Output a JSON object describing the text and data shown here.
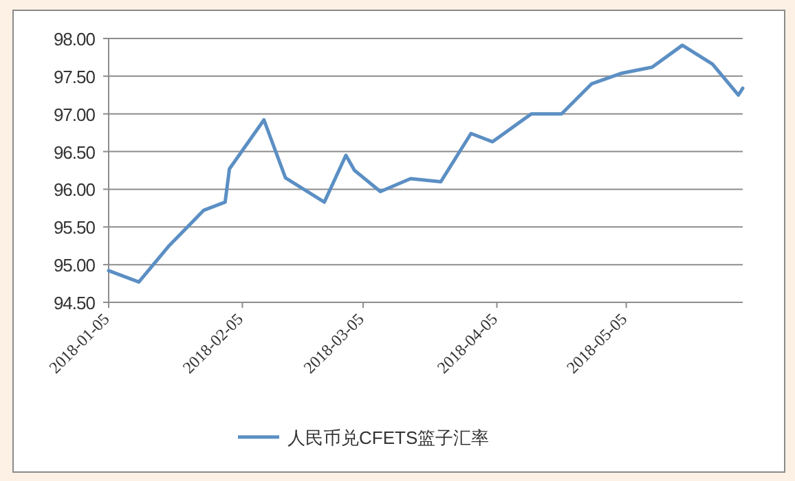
{
  "chart_data": {
    "type": "line",
    "x": [
      "2018-01-05",
      "2018-01-12",
      "2018-01-19",
      "2018-01-27",
      "2018-02-01",
      "2018-02-02",
      "2018-02-10",
      "2018-02-15",
      "2018-02-24",
      "2018-03-01",
      "2018-03-03",
      "2018-03-09",
      "2018-03-16",
      "2018-03-23",
      "2018-03-30",
      "2018-04-04",
      "2018-04-13",
      "2018-04-20",
      "2018-04-27",
      "2018-05-04",
      "2018-05-11",
      "2018-05-18",
      "2018-05-25",
      "2018-05-31",
      "2018-06-01"
    ],
    "series": [
      {
        "name": "人民币兑CFETS篮子汇率",
        "color": "#5b8fc4",
        "values": [
          94.92,
          94.77,
          95.25,
          95.72,
          95.83,
          96.27,
          96.92,
          96.15,
          95.83,
          96.45,
          96.25,
          95.97,
          96.14,
          96.1,
          96.74,
          96.63,
          97.0,
          97.0,
          97.4,
          97.54,
          97.62,
          97.91,
          97.66,
          97.25,
          97.34
        ]
      }
    ],
    "xlim": [
      "2018-01-05",
      "2018-06-01"
    ],
    "xticks": [
      "2018-01-05",
      "2018-02-05",
      "2018-03-05",
      "2018-04-05",
      "2018-05-05"
    ],
    "ylim": [
      94.5,
      98
    ],
    "yticks": [
      {
        "value": 94.5,
        "label": "94.50"
      },
      {
        "value": 95,
        "label": "95.00"
      },
      {
        "value": 95.5,
        "label": "95.50"
      },
      {
        "value": 96,
        "label": "96.00"
      },
      {
        "value": 96.5,
        "label": "96.50"
      },
      {
        "value": 97,
        "label": "97.00"
      },
      {
        "value": 97.5,
        "label": "97.50"
      },
      {
        "value": 98,
        "label": "98.00"
      }
    ],
    "grid": "y",
    "legend": "bottom",
    "line_style": "solid",
    "marker": "none"
  }
}
